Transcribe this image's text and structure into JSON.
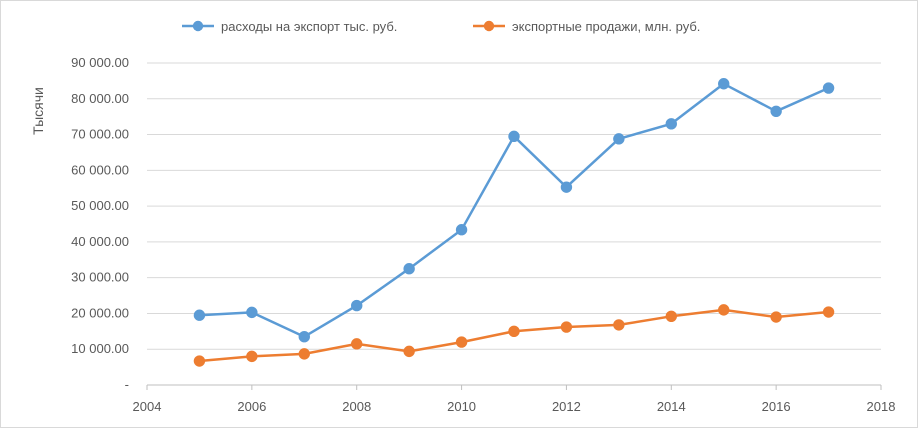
{
  "chart_data": {
    "type": "line",
    "title": "",
    "xlabel": "",
    "ylabel": "Тысячи",
    "xlim": [
      2004,
      2018
    ],
    "ylim": [
      0,
      90000
    ],
    "x_ticks": [
      "2004",
      "2006",
      "2008",
      "2010",
      "2012",
      "2014",
      "2016",
      "2018"
    ],
    "y_ticks": [
      "-",
      "10 000.00",
      "20 000.00",
      "30 000.00",
      "40 000.00",
      "50 000.00",
      "60 000.00",
      "70 000.00",
      "80 000.00",
      "90 000.00"
    ],
    "grid": "horizontal",
    "legend_position": "top",
    "x": [
      2005,
      2006,
      2007,
      2008,
      2009,
      2010,
      2011,
      2012,
      2013,
      2014,
      2015,
      2016,
      2017
    ],
    "series": [
      {
        "name": "расходы на экспорт тыс. руб.",
        "color": "#5b9bd5",
        "values": [
          19500,
          20300,
          13500,
          22200,
          32500,
          43400,
          69500,
          55300,
          68800,
          73000,
          84200,
          76500,
          83000
        ]
      },
      {
        "name": "экспортные продажи, млн. руб.",
        "color": "#ed7d31",
        "values": [
          6700,
          8000,
          8700,
          11500,
          9400,
          12000,
          15000,
          16200,
          16800,
          19200,
          21000,
          19000,
          20400
        ]
      }
    ]
  }
}
